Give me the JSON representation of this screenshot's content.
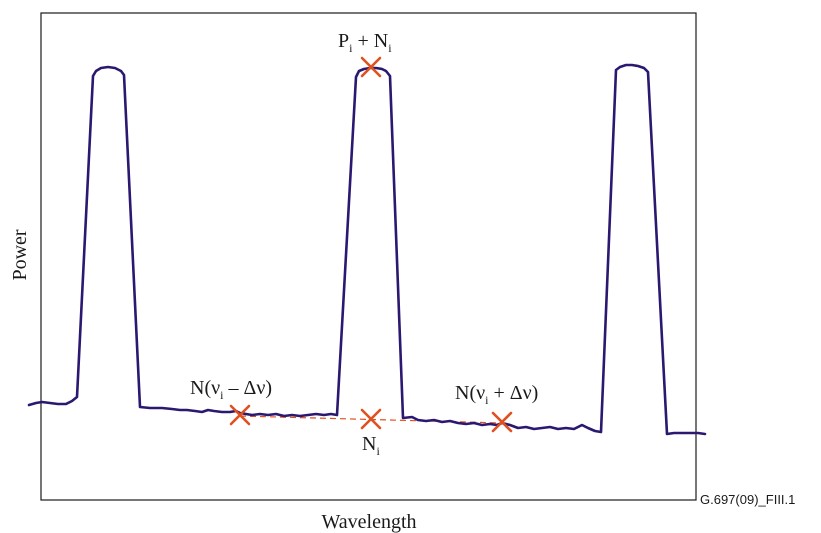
{
  "figure": {
    "ylabel": "Power",
    "xlabel": "Wavelength",
    "figure_id": "G.697(09)_FIII.1",
    "colors": {
      "trace": "#2b1870",
      "marker": "#e0501e",
      "dashed_line": "#e0501e",
      "frame": "#1a1a1a"
    },
    "annotations": {
      "peak": {
        "main": "P",
        "sub": "i",
        "mid": " + N",
        "sub2": "i"
      },
      "noise_center": {
        "main": "N",
        "sub": "i"
      },
      "noise_left": {
        "pre": "N(ν",
        "sub": "i",
        "post": " – Δν)"
      },
      "noise_right": {
        "pre": "N(ν",
        "sub": "i",
        "post": " + Δν)"
      }
    }
  }
}
